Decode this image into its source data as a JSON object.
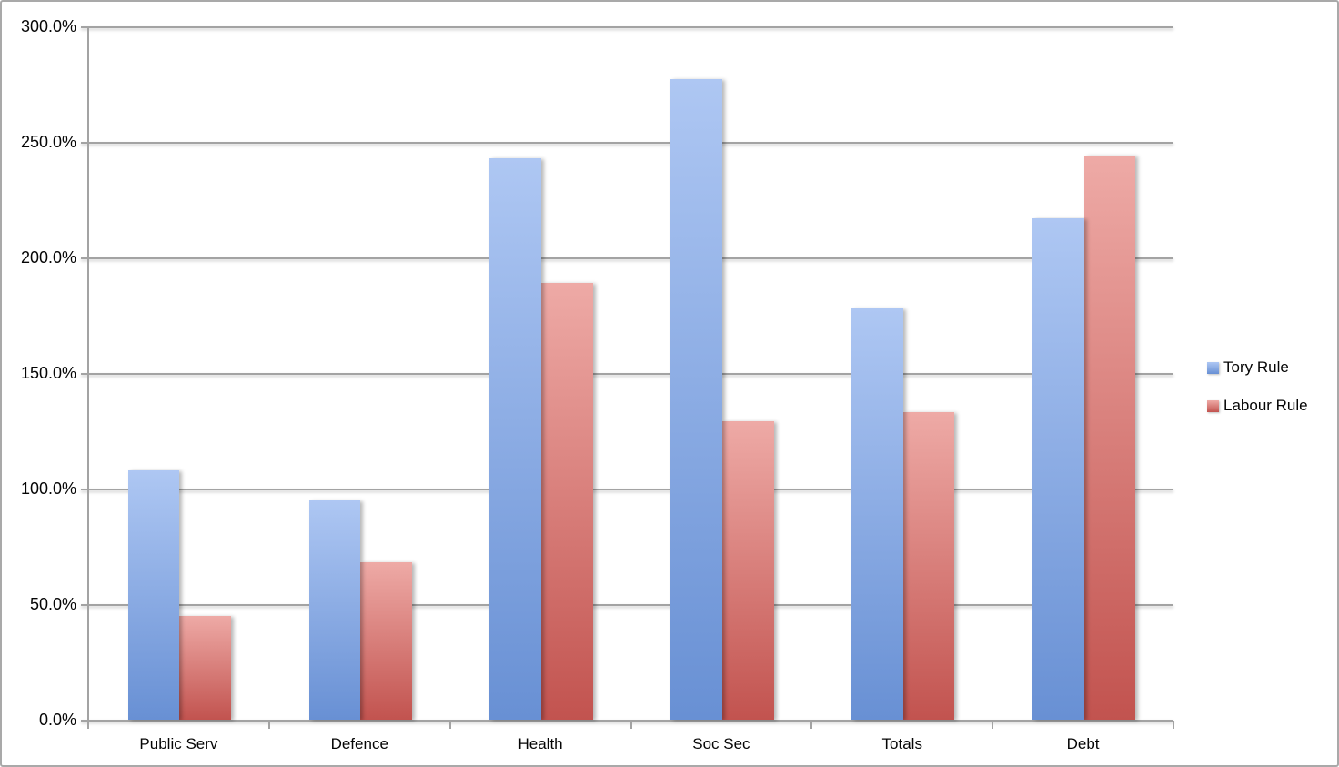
{
  "chart_data": {
    "type": "bar",
    "title": "",
    "xlabel": "",
    "ylabel": "",
    "categories": [
      "Public Serv",
      "Defence",
      "Health",
      "Soc Sec",
      "Totals",
      "Debt"
    ],
    "series": [
      {
        "name": "Tory Rule",
        "color_top": "#aec7f3",
        "color_bottom": "#6890d4",
        "values": [
          108,
          95,
          243,
          277,
          178,
          217
        ]
      },
      {
        "name": "Labour Rule",
        "color_top": "#eeaaa6",
        "color_bottom": "#c2534f",
        "values": [
          45,
          68,
          189,
          129,
          133,
          244
        ]
      }
    ],
    "value_unit": "%",
    "ylim": [
      0,
      300
    ],
    "y_tick_step": 50,
    "y_tick_labels": [
      "0.0%",
      "50.0%",
      "100.0%",
      "150.0%",
      "200.0%",
      "250.0%",
      "300.0%"
    ],
    "grid": true,
    "legend_position": "right"
  },
  "colors": {
    "gridline": "#a3a3a3",
    "axis": "#a3a3a3",
    "frame_border": "#a9a9a9",
    "text": "#050505",
    "background": "#ffffff"
  }
}
